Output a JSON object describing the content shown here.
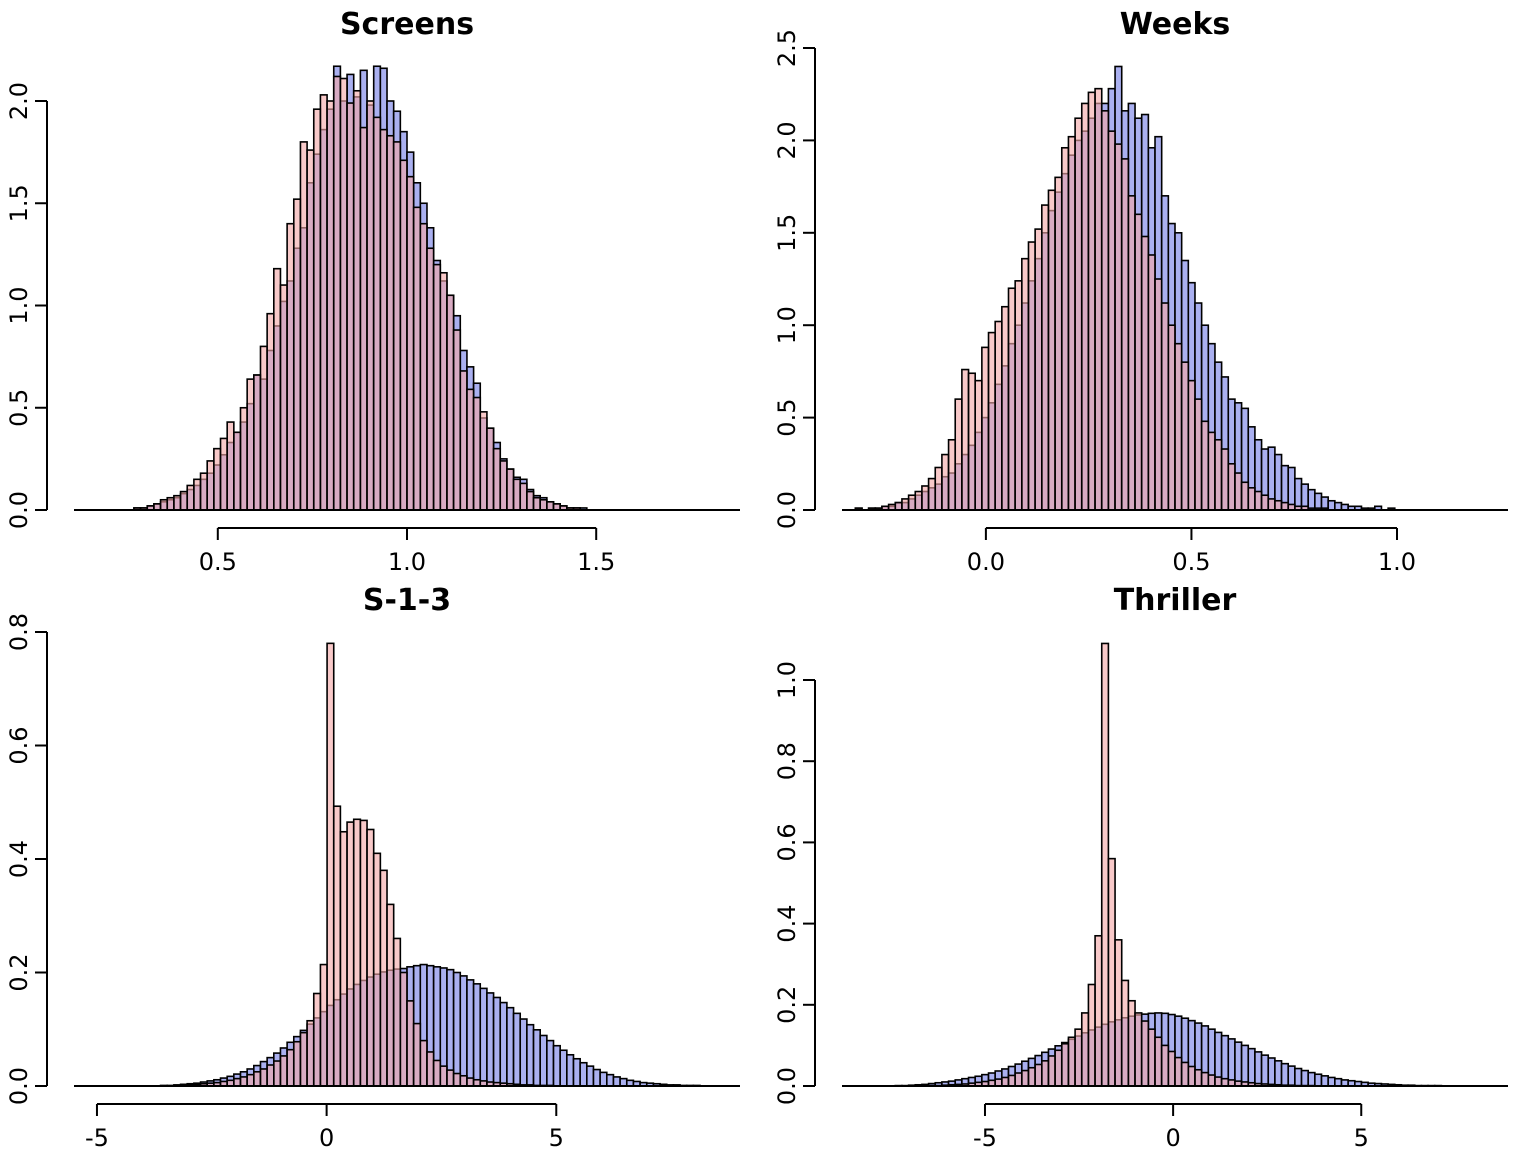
{
  "chart_data": [
    {
      "type": "bar",
      "title": "Screens",
      "xlabel": "",
      "ylabel": "",
      "xlim": [
        0.12,
        1.88
      ],
      "ylim": [
        0,
        2.0
      ],
      "x_ticks": [
        "0.5",
        "1.0",
        "1.5"
      ],
      "y_ticks": [
        "0.0",
        "0.5",
        "1.0",
        "1.5",
        "2.0"
      ],
      "grid": false,
      "series": [
        {
          "color": "#aab0f0",
          "x_start": 0.12,
          "bin_width": 0.0176,
          "values": [
            0,
            0,
            0,
            0,
            0,
            0,
            0,
            0,
            0,
            0.01,
            0.01,
            0.02,
            0.03,
            0.04,
            0.05,
            0.06,
            0.08,
            0.1,
            0.12,
            0.15,
            0.18,
            0.22,
            0.27,
            0.33,
            0.38,
            0.43,
            0.52,
            0.66,
            0.64,
            0.78,
            0.9,
            1.02,
            1.12,
            1.28,
            1.38,
            1.6,
            1.74,
            1.86,
            1.96,
            2.17,
            2.0,
            2.13,
            2.02,
            2.15,
            1.98,
            2.17,
            2.16,
            2.0,
            1.95,
            1.85,
            1.75,
            1.6,
            1.5,
            1.38,
            1.22,
            1.12,
            1.05,
            0.95,
            0.78,
            0.7,
            0.62,
            0.45,
            0.4,
            0.33,
            0.25,
            0.2,
            0.16,
            0.15,
            0.1,
            0.07,
            0.06,
            0.04,
            0.03,
            0.02,
            0.01,
            0.01,
            0.01,
            0,
            0,
            0,
            0,
            0,
            0,
            0,
            0,
            0,
            0,
            0,
            0,
            0,
            0,
            0,
            0,
            0,
            0,
            0,
            0,
            0,
            0,
            0
          ]
        },
        {
          "color": "#f4a8a8",
          "x_start": 0.12,
          "bin_width": 0.0176,
          "values": [
            0,
            0,
            0,
            0,
            0,
            0,
            0,
            0,
            0,
            0.01,
            0.01,
            0.02,
            0.03,
            0.05,
            0.06,
            0.07,
            0.09,
            0.12,
            0.15,
            0.18,
            0.24,
            0.3,
            0.35,
            0.43,
            0.38,
            0.5,
            0.64,
            0.66,
            0.8,
            0.96,
            1.18,
            1.1,
            1.4,
            1.52,
            1.8,
            1.76,
            1.96,
            2.03,
            2.0,
            2.12,
            2.11,
            1.99,
            2.05,
            1.87,
            2.0,
            1.92,
            1.86,
            1.83,
            1.8,
            1.71,
            1.63,
            1.48,
            1.4,
            1.28,
            1.2,
            1.16,
            1.05,
            0.88,
            0.68,
            0.59,
            0.55,
            0.48,
            0.4,
            0.3,
            0.24,
            0.2,
            0.15,
            0.13,
            0.09,
            0.06,
            0.05,
            0.04,
            0.03,
            0.02,
            0.01,
            0.01,
            0,
            0,
            0,
            0,
            0,
            0,
            0,
            0,
            0,
            0,
            0,
            0,
            0,
            0,
            0,
            0,
            0,
            0,
            0,
            0,
            0,
            0,
            0,
            0
          ]
        }
      ]
    },
    {
      "type": "bar",
      "title": "Weeks",
      "xlabel": "",
      "ylabel": "",
      "xlim": [
        -0.35,
        1.27
      ],
      "ylim": [
        0,
        2.5
      ],
      "x_ticks": [
        "0.0",
        "0.5",
        "1.0"
      ],
      "y_ticks": [
        "0.0",
        "0.5",
        "1.0",
        "1.5",
        "2.0",
        "2.5"
      ],
      "grid": false,
      "series": [
        {
          "color": "#aab0f0",
          "x_start": -0.35,
          "bin_width": 0.0162,
          "values": [
            0,
            0,
            0.01,
            0,
            0.01,
            0.01,
            0.02,
            0.02,
            0.04,
            0.04,
            0.06,
            0.08,
            0.1,
            0.12,
            0.14,
            0.18,
            0.2,
            0.25,
            0.3,
            0.35,
            0.42,
            0.5,
            0.58,
            0.68,
            0.78,
            0.9,
            1.0,
            1.12,
            1.24,
            1.36,
            1.5,
            1.62,
            1.72,
            1.82,
            1.92,
            2.0,
            2.05,
            2.12,
            2.2,
            2.2,
            2.28,
            2.4,
            2.16,
            2.2,
            2.12,
            2.14,
            1.96,
            2.02,
            1.7,
            1.55,
            1.5,
            1.35,
            1.23,
            1.12,
            1.0,
            0.9,
            0.8,
            0.72,
            0.6,
            0.58,
            0.55,
            0.45,
            0.38,
            0.33,
            0.34,
            0.3,
            0.24,
            0.23,
            0.17,
            0.14,
            0.11,
            0.09,
            0.07,
            0.05,
            0.04,
            0.03,
            0.02,
            0.02,
            0.01,
            0.01,
            0.02,
            0,
            0.01,
            0,
            0,
            0,
            0,
            0,
            0,
            0,
            0,
            0,
            0,
            0,
            0,
            0,
            0,
            0,
            0,
            0
          ]
        },
        {
          "color": "#f4a8a8",
          "x_start": -0.35,
          "bin_width": 0.0162,
          "values": [
            0,
            0,
            0.01,
            0,
            0.01,
            0.01,
            0.02,
            0.03,
            0.04,
            0.06,
            0.08,
            0.1,
            0.13,
            0.17,
            0.23,
            0.3,
            0.38,
            0.6,
            0.76,
            0.74,
            0.7,
            0.88,
            0.96,
            1.02,
            1.1,
            1.2,
            1.24,
            1.36,
            1.45,
            1.52,
            1.65,
            1.73,
            1.8,
            1.96,
            2.02,
            2.12,
            2.2,
            2.26,
            2.28,
            2.16,
            2.05,
            1.98,
            1.9,
            1.7,
            1.6,
            1.48,
            1.38,
            1.25,
            1.12,
            1.0,
            0.9,
            0.8,
            0.7,
            0.6,
            0.48,
            0.42,
            0.38,
            0.33,
            0.25,
            0.2,
            0.15,
            0.12,
            0.1,
            0.08,
            0.06,
            0.05,
            0.04,
            0.03,
            0.02,
            0.02,
            0.01,
            0.01,
            0.01,
            0,
            0,
            0,
            0,
            0,
            0,
            0,
            0,
            0,
            0,
            0,
            0,
            0,
            0,
            0,
            0,
            0,
            0,
            0,
            0,
            0,
            0,
            0,
            0,
            0,
            0,
            0
          ]
        }
      ]
    },
    {
      "type": "bar",
      "title": "S-1-3",
      "xlabel": "",
      "ylabel": "",
      "xlim": [
        -5.5,
        9.0
      ],
      "ylim": [
        0,
        0.8
      ],
      "x_ticks": [
        "-5",
        "0",
        "5"
      ],
      "y_ticks": [
        "0.0",
        "0.2",
        "0.4",
        "0.6",
        "0.8"
      ],
      "grid": false,
      "series": [
        {
          "color": "#aab0f0",
          "x_start": -5.5,
          "bin_width": 0.145,
          "values": [
            0,
            0,
            0,
            0,
            0,
            0,
            0,
            0,
            0,
            0,
            0,
            0,
            0,
            0.001,
            0.001,
            0.002,
            0.003,
            0.004,
            0.005,
            0.007,
            0.009,
            0.011,
            0.014,
            0.017,
            0.021,
            0.025,
            0.03,
            0.036,
            0.043,
            0.05,
            0.058,
            0.067,
            0.077,
            0.087,
            0.098,
            0.109,
            0.12,
            0.131,
            0.142,
            0.152,
            0.162,
            0.171,
            0.179,
            0.186,
            0.192,
            0.197,
            0.201,
            0.204,
            0.206,
            0.207,
            0.21,
            0.212,
            0.214,
            0.212,
            0.21,
            0.208,
            0.205,
            0.2,
            0.194,
            0.187,
            0.18,
            0.172,
            0.164,
            0.156,
            0.147,
            0.138,
            0.128,
            0.118,
            0.108,
            0.099,
            0.089,
            0.08,
            0.071,
            0.063,
            0.055,
            0.048,
            0.041,
            0.035,
            0.029,
            0.024,
            0.02,
            0.016,
            0.013,
            0.01,
            0.008,
            0.006,
            0.005,
            0.004,
            0.003,
            0.002,
            0.002,
            0.001,
            0.001,
            0.001,
            0,
            0,
            0,
            0,
            0,
            0
          ]
        },
        {
          "color": "#f4a8a8",
          "x_start": -5.5,
          "bin_width": 0.145,
          "values": [
            0,
            0,
            0,
            0,
            0,
            0,
            0,
            0,
            0,
            0,
            0,
            0,
            0,
            0,
            0,
            0.001,
            0.001,
            0.002,
            0.003,
            0.004,
            0.005,
            0.006,
            0.008,
            0.01,
            0.013,
            0.016,
            0.02,
            0.025,
            0.03,
            0.037,
            0.044,
            0.053,
            0.064,
            0.078,
            0.094,
            0.115,
            0.163,
            0.214,
            0.78,
            0.493,
            0.448,
            0.465,
            0.47,
            0.468,
            0.452,
            0.41,
            0.38,
            0.32,
            0.26,
            0.2,
            0.15,
            0.11,
            0.08,
            0.06,
            0.045,
            0.035,
            0.028,
            0.022,
            0.018,
            0.014,
            0.011,
            0.009,
            0.007,
            0.006,
            0.005,
            0.004,
            0.003,
            0.002,
            0.002,
            0.001,
            0.001,
            0.001,
            0,
            0,
            0,
            0,
            0,
            0,
            0,
            0,
            0,
            0,
            0,
            0,
            0,
            0,
            0,
            0,
            0,
            0,
            0,
            0,
            0,
            0,
            0,
            0,
            0,
            0,
            0,
            0
          ]
        }
      ]
    },
    {
      "type": "bar",
      "title": "Thriller",
      "xlabel": "",
      "ylabel": "",
      "xlim": [
        -8.8,
        8.9
      ],
      "ylim": [
        0,
        1.0
      ],
      "x_ticks": [
        "-5",
        "0",
        "5"
      ],
      "y_ticks": [
        "0.0",
        "0.2",
        "0.4",
        "0.6",
        "0.8",
        "1.0"
      ],
      "grid": false,
      "series": [
        {
          "color": "#aab0f0",
          "x_start": -8.8,
          "bin_width": 0.177,
          "values": [
            0,
            0,
            0,
            0,
            0,
            0,
            0,
            0,
            0.001,
            0.001,
            0.002,
            0.003,
            0.004,
            0.006,
            0.008,
            0.01,
            0.012,
            0.015,
            0.018,
            0.021,
            0.024,
            0.028,
            0.032,
            0.037,
            0.042,
            0.048,
            0.054,
            0.061,
            0.068,
            0.075,
            0.083,
            0.091,
            0.099,
            0.107,
            0.115,
            0.123,
            0.131,
            0.138,
            0.145,
            0.152,
            0.158,
            0.163,
            0.168,
            0.172,
            0.175,
            0.177,
            0.179,
            0.18,
            0.179,
            0.176,
            0.172,
            0.167,
            0.161,
            0.155,
            0.148,
            0.14,
            0.132,
            0.124,
            0.116,
            0.108,
            0.1,
            0.092,
            0.084,
            0.076,
            0.069,
            0.062,
            0.055,
            0.049,
            0.043,
            0.038,
            0.033,
            0.029,
            0.025,
            0.021,
            0.018,
            0.015,
            0.013,
            0.011,
            0.009,
            0.007,
            0.006,
            0.005,
            0.004,
            0.003,
            0.002,
            0.002,
            0.001,
            0.001,
            0.001,
            0.001,
            0,
            0,
            0,
            0,
            0,
            0,
            0,
            0,
            0,
            0
          ]
        },
        {
          "color": "#f4a8a8",
          "x_start": -8.8,
          "bin_width": 0.177,
          "values": [
            0,
            0,
            0,
            0,
            0,
            0,
            0,
            0,
            0,
            0,
            0,
            0,
            0,
            0.001,
            0.001,
            0.002,
            0.003,
            0.004,
            0.005,
            0.007,
            0.009,
            0.011,
            0.014,
            0.017,
            0.021,
            0.026,
            0.032,
            0.038,
            0.045,
            0.053,
            0.062,
            0.074,
            0.088,
            0.104,
            0.12,
            0.14,
            0.18,
            0.25,
            0.37,
            1.09,
            0.56,
            0.36,
            0.26,
            0.21,
            0.18,
            0.16,
            0.14,
            0.12,
            0.1,
            0.085,
            0.07,
            0.058,
            0.048,
            0.04,
            0.033,
            0.027,
            0.022,
            0.018,
            0.015,
            0.012,
            0.01,
            0.008,
            0.006,
            0.005,
            0.004,
            0.003,
            0.002,
            0.002,
            0.001,
            0.001,
            0.001,
            0,
            0,
            0,
            0,
            0,
            0,
            0,
            0,
            0,
            0,
            0,
            0,
            0,
            0,
            0,
            0,
            0,
            0,
            0,
            0,
            0,
            0,
            0,
            0,
            0,
            0,
            0,
            0,
            0
          ]
        }
      ]
    }
  ]
}
